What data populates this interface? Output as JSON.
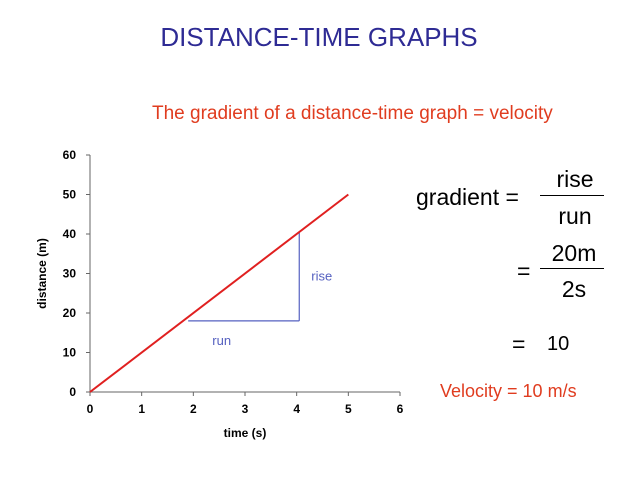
{
  "slide": {
    "title": "DISTANCE-TIME GRAPHS",
    "subtitle": "The gradient of a distance-time graph = velocity",
    "title_color": "#2e2b94",
    "accent_color": "#e03c1f"
  },
  "equation": {
    "lhs": "gradient =",
    "fraction1": {
      "numerator": "rise",
      "denominator": "run"
    },
    "equals": "=",
    "fraction2": {
      "numerator": "20m",
      "denominator": "2s"
    },
    "result_equals": "=",
    "result_value": "10",
    "conclusion": "Velocity = 10 m/s"
  },
  "chart_data": {
    "type": "line",
    "title": "",
    "xlabel": "time (s)",
    "ylabel": "distance (m)",
    "xlim": [
      0,
      6
    ],
    "ylim": [
      0,
      60
    ],
    "x_ticks": [
      0,
      1,
      2,
      3,
      4,
      5,
      6
    ],
    "y_ticks": [
      0,
      10,
      20,
      30,
      40,
      50,
      60
    ],
    "grid": false,
    "series": [
      {
        "x": [
          0,
          5
        ],
        "y": [
          0,
          50
        ],
        "color": "#e02020"
      }
    ],
    "annotations": {
      "triangle": {
        "x_start": 1.9,
        "x_end": 4.05,
        "y_low": 18,
        "y_high": 40.5,
        "color": "#5560c0"
      },
      "run_label": "run",
      "rise_label": "rise"
    }
  }
}
